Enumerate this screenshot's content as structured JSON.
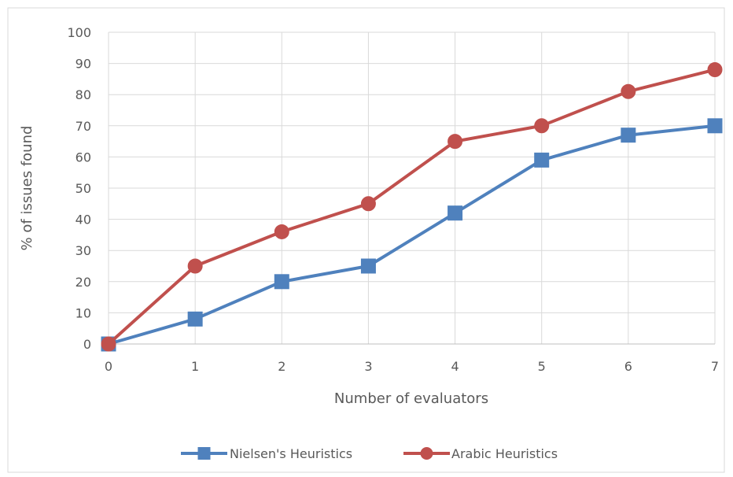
{
  "chart_data": {
    "type": "line",
    "title": "",
    "xlabel": "Number of evaluators",
    "ylabel": "% of issues found",
    "x": [
      0,
      1,
      2,
      3,
      4,
      5,
      6,
      7
    ],
    "x_tick_labels": [
      "0",
      "1",
      "2",
      "3",
      "4",
      "5",
      "6",
      "7"
    ],
    "ylim": [
      0,
      100
    ],
    "y_ticks": [
      0,
      10,
      20,
      30,
      40,
      50,
      60,
      70,
      80,
      90,
      100
    ],
    "y_tick_labels": [
      "0",
      "10",
      "20",
      "30",
      "40",
      "50",
      "60",
      "70",
      "80",
      "90",
      "100"
    ],
    "grid": "horizontal",
    "legend_position": "bottom",
    "series": [
      {
        "name": "Nielsen's Heuristics",
        "marker": "square",
        "color": "#4F81BD",
        "values": [
          0,
          8,
          20,
          25,
          42,
          59,
          67,
          70
        ]
      },
      {
        "name": "Arabic Heuristics",
        "marker": "circle",
        "color": "#C0504D",
        "values": [
          0,
          25,
          36,
          45,
          65,
          70,
          81,
          88
        ]
      }
    ]
  }
}
